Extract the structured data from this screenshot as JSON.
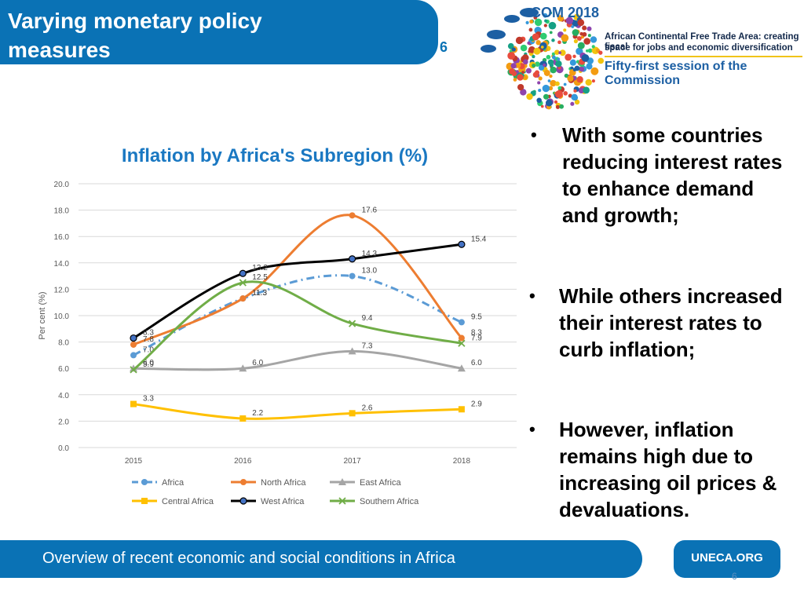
{
  "slide": {
    "title": "Varying monetary policy measures",
    "number_top": "6",
    "number_bottom": "6"
  },
  "logo": {
    "brand": "COM 2018",
    "line1": "African Continental Free Trade Area: creating fiscal",
    "line2": "space for jobs and economic diversification",
    "line3": "Fifty-first session of the Commission"
  },
  "bullets": [
    "With some countries reducing interest rates to enhance demand and growth;",
    "While others increased their interest rates to curb inflation;",
    "However, inflation remains high due to increasing oil prices & devaluations."
  ],
  "footer": {
    "text": "Overview of recent economic and social conditions in Africa",
    "link": "UNECA.ORG"
  },
  "colors": {
    "brand_blue": "#0a72b5",
    "africa": "#5b9bd5",
    "north_africa": "#ed7d31",
    "east_africa": "#a5a5a5",
    "central_africa": "#ffc000",
    "west_africa": "#000000",
    "southern_africa": "#70ad47"
  },
  "chart_data": {
    "type": "line",
    "title": "Inflation by Africa's Subregion (%)",
    "xlabel": "",
    "ylabel": "Per cent (%)",
    "ylim": [
      0,
      20
    ],
    "yticks": [
      "0.0",
      "2.0",
      "4.0",
      "6.0",
      "8.0",
      "10.0",
      "12.0",
      "14.0",
      "16.0",
      "18.0",
      "20.0"
    ],
    "categories": [
      "2015",
      "2016",
      "2017",
      "2018"
    ],
    "grid": true,
    "legend_position": "bottom",
    "series": [
      {
        "name": "Africa",
        "values": [
          7.0,
          11.3,
          13.0,
          9.5
        ],
        "color": "#5b9bd5",
        "marker": "circle",
        "dash": "dashdot",
        "labels": [
          "7.0",
          "11.3",
          "13.0",
          "9.5"
        ]
      },
      {
        "name": "North Africa",
        "values": [
          7.8,
          11.3,
          17.6,
          8.3
        ],
        "color": "#ed7d31",
        "marker": "circle",
        "dash": "solid",
        "labels": [
          "7.8",
          "11.3",
          "17.6",
          "8.3"
        ]
      },
      {
        "name": "East Africa",
        "values": [
          6.0,
          6.0,
          7.3,
          6.0
        ],
        "color": "#a5a5a5",
        "marker": "triangle",
        "dash": "solid",
        "labels": [
          "6.0",
          "6.0",
          "7.3",
          "6.0"
        ]
      },
      {
        "name": "Central Africa",
        "values": [
          3.3,
          2.2,
          2.6,
          2.9
        ],
        "color": "#ffc000",
        "marker": "square",
        "dash": "solid",
        "labels": [
          "3.3",
          "2.2",
          "2.6",
          "2.9"
        ]
      },
      {
        "name": "West Africa",
        "values": [
          8.3,
          13.2,
          14.3,
          15.4
        ],
        "color": "#000000",
        "marker": "circle-blue",
        "dash": "solid",
        "labels": [
          "8.3",
          "13.2",
          "14.3",
          "15.4"
        ]
      },
      {
        "name": "Southern Africa",
        "values": [
          5.9,
          12.5,
          9.4,
          7.9
        ],
        "color": "#70ad47",
        "marker": "x",
        "dash": "solid",
        "labels": [
          "5.9",
          "12.5",
          "9.4",
          "7.9"
        ]
      }
    ]
  }
}
